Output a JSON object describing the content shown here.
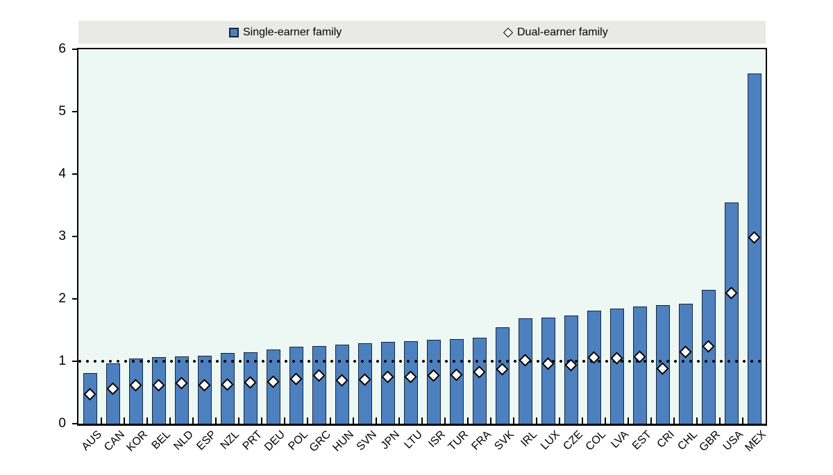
{
  "legend": {
    "items": [
      {
        "label": "Single-earner family",
        "marker": "square"
      },
      {
        "label": "Dual-earner family",
        "marker": "diamond"
      }
    ]
  },
  "colors": {
    "bar_fill": "#4d80be",
    "bar_border": "#16263c",
    "plot_bg": "#edf8f5",
    "legend_bg": "#e9e9e7",
    "marker_fill": "#ffffff",
    "marker_border": "#000000",
    "dotted_line": "#000000",
    "axis": "#000000"
  },
  "chart_data": {
    "type": "bar",
    "title": "",
    "xlabel": "",
    "ylabel": "",
    "ylim": [
      0,
      6
    ],
    "yticks": [
      0,
      1,
      2,
      3,
      4,
      5,
      6
    ],
    "reference_line_y": 1,
    "grid": false,
    "legend_position": "top",
    "categories": [
      "AUS",
      "CAN",
      "KOR",
      "BEL",
      "NLD",
      "ESP",
      "NZL",
      "PRT",
      "DEU",
      "POL",
      "GRC",
      "HUN",
      "SVN",
      "JPN",
      "LTU",
      "ISR",
      "TUR",
      "FRA",
      "SVK",
      "IRL",
      "LUX",
      "CZE",
      "COL",
      "LVA",
      "EST",
      "CRI",
      "CHL",
      "GBR",
      "USA",
      "MEX"
    ],
    "series": [
      {
        "name": "Single-earner family",
        "type": "bar",
        "values": [
          0.81,
          0.97,
          1.05,
          1.07,
          1.08,
          1.09,
          1.13,
          1.14,
          1.19,
          1.23,
          1.25,
          1.27,
          1.29,
          1.31,
          1.32,
          1.34,
          1.36,
          1.38,
          1.55,
          1.69,
          1.7,
          1.73,
          1.81,
          1.85,
          1.88,
          1.9,
          1.92,
          2.15,
          3.55,
          5.61
        ]
      },
      {
        "name": "Dual-earner family",
        "type": "scatter",
        "marker": "diamond",
        "values": [
          0.47,
          0.56,
          0.62,
          0.62,
          0.65,
          0.62,
          0.63,
          0.66,
          0.67,
          0.72,
          0.77,
          0.7,
          0.71,
          0.75,
          0.75,
          0.77,
          0.78,
          0.83,
          0.87,
          1.02,
          0.96,
          0.94,
          1.06,
          1.05,
          1.07,
          0.88,
          1.15,
          1.24,
          2.09,
          2.98
        ]
      }
    ]
  }
}
